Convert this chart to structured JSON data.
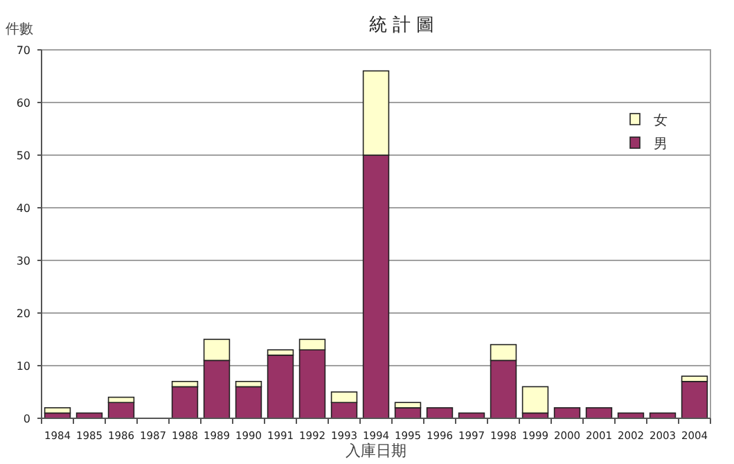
{
  "chart_data": {
    "type": "bar",
    "title": "統 計 圖",
    "xlabel": "入庫日期",
    "ylabel": "件數",
    "categories": [
      "1984",
      "1985",
      "1986",
      "1987",
      "1988",
      "1989",
      "1990",
      "1991",
      "1992",
      "1993",
      "1994",
      "1995",
      "1996",
      "1997",
      "1998",
      "1999",
      "2000",
      "2001",
      "2002",
      "2003",
      "2004"
    ],
    "series": [
      {
        "name": "男",
        "color": "#993366",
        "values": [
          1,
          1,
          3,
          0,
          6,
          11,
          6,
          12,
          13,
          3,
          50,
          2,
          2,
          1,
          11,
          1,
          2,
          2,
          1,
          1,
          7
        ]
      },
      {
        "name": "女",
        "color": "#ffffcc",
        "values": [
          1,
          0,
          1,
          0,
          1,
          4,
          1,
          1,
          2,
          2,
          16,
          1,
          0,
          0,
          3,
          5,
          0,
          0,
          0,
          0,
          1
        ]
      }
    ],
    "stacked": true,
    "ylim": [
      0,
      70
    ],
    "yticks": [
      0,
      10,
      20,
      30,
      40,
      50,
      60,
      70
    ],
    "grid": "y",
    "legend": "top right"
  }
}
